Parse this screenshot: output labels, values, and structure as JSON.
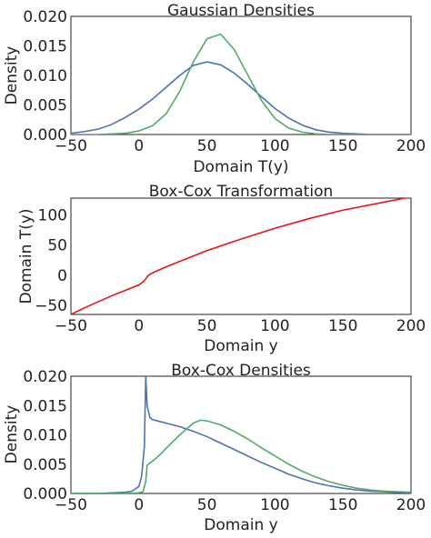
{
  "chart_data": [
    {
      "type": "line",
      "title": "Gaussian Densities",
      "xlabel": "Domain T(y)",
      "ylabel": "Density",
      "xlim": [
        -50,
        200
      ],
      "ylim": [
        0,
        0.02
      ],
      "xticks": [
        "−50",
        "0",
        "50",
        "100",
        "150",
        "200"
      ],
      "yticks": [
        "0.000",
        "0.005",
        "0.010",
        "0.015",
        "0.020"
      ],
      "grid": false,
      "series": [
        {
          "color": "#4c72b0",
          "x": [
            -50,
            -40,
            -30,
            -20,
            -10,
            0,
            10,
            20,
            30,
            40,
            50,
            60,
            70,
            80,
            90,
            100,
            110,
            120,
            130,
            140,
            150,
            160,
            170,
            180,
            190,
            200
          ],
          "y": [
            0.0002,
            0.0005,
            0.0009,
            0.0017,
            0.0029,
            0.0043,
            0.006,
            0.008,
            0.01,
            0.0117,
            0.0123,
            0.0118,
            0.0104,
            0.0085,
            0.0064,
            0.0044,
            0.0028,
            0.0016,
            0.0008,
            0.0004,
            0.0002,
            0.0001,
            0.0,
            0.0,
            0.0,
            0.0
          ]
        },
        {
          "color": "#55a868",
          "x": [
            -50,
            -40,
            -30,
            -20,
            -10,
            0,
            10,
            20,
            30,
            40,
            50,
            60,
            70,
            80,
            90,
            100,
            110,
            120,
            130,
            140,
            150,
            160,
            170,
            180,
            190,
            200
          ],
          "y": [
            0.0,
            0.0,
            0.0,
            0.0001,
            0.0002,
            0.0006,
            0.0015,
            0.0035,
            0.0073,
            0.0123,
            0.0162,
            0.017,
            0.0144,
            0.0101,
            0.0058,
            0.0027,
            0.0011,
            0.0004,
            0.0001,
            0.0,
            0.0,
            0.0,
            0.0,
            0.0,
            0.0,
            0.0
          ]
        }
      ]
    },
    {
      "type": "line",
      "title": "Box-Cox Transformation",
      "xlabel": "Domain y",
      "ylabel": "Domain T(y)",
      "xlim": [
        -50,
        200
      ],
      "ylim": [
        -65,
        128
      ],
      "xticks": [
        "−50",
        "0",
        "50",
        "100",
        "150",
        "200"
      ],
      "yticks": [
        "−50",
        "0",
        "50",
        "100"
      ],
      "grid": false,
      "series": [
        {
          "color": "#e8141a",
          "x": [
            -50,
            -40,
            -30,
            -20,
            -10,
            0,
            3,
            5,
            7,
            10,
            20,
            30,
            50,
            75,
            100,
            125,
            150,
            175,
            200
          ],
          "y": [
            -65,
            -54,
            -44,
            -34,
            -25,
            -16,
            -11,
            -6,
            0,
            4,
            14,
            23,
            41,
            60,
            78,
            94,
            108,
            119,
            130
          ]
        }
      ]
    },
    {
      "type": "line",
      "title": "Box-Cox Densities",
      "xlabel": "Domain y",
      "ylabel": "Density",
      "xlim": [
        -50,
        200
      ],
      "ylim": [
        0,
        0.02
      ],
      "xticks": [
        "−50",
        "0",
        "50",
        "100",
        "150",
        "200"
      ],
      "yticks": [
        "0.000",
        "0.005",
        "0.010",
        "0.015",
        "0.020"
      ],
      "grid": false,
      "series": [
        {
          "color": "#4c72b0",
          "x": [
            -50,
            -30,
            -20,
            -10,
            -5,
            0,
            2,
            4,
            5,
            6,
            8,
            10,
            15,
            20,
            30,
            40,
            50,
            60,
            70,
            80,
            90,
            100,
            110,
            120,
            130,
            140,
            150,
            160,
            170,
            180,
            190,
            200
          ],
          "y": [
            0.0,
            0.0,
            0.0001,
            0.0002,
            0.0004,
            0.0012,
            0.003,
            0.008,
            0.02,
            0.015,
            0.013,
            0.0126,
            0.0123,
            0.012,
            0.0114,
            0.0106,
            0.0097,
            0.0086,
            0.0075,
            0.0064,
            0.0053,
            0.0043,
            0.0033,
            0.0025,
            0.0018,
            0.0013,
            0.0009,
            0.0006,
            0.0004,
            0.0003,
            0.0002,
            0.0001
          ]
        },
        {
          "color": "#55a868",
          "x": [
            -50,
            -20,
            -10,
            0,
            3,
            5,
            6,
            8,
            10,
            15,
            20,
            30,
            40,
            45,
            50,
            60,
            70,
            80,
            90,
            100,
            110,
            120,
            130,
            140,
            150,
            160,
            170,
            180,
            190,
            200
          ],
          "y": [
            0.0,
            0.0,
            0.0,
            0.0001,
            0.0003,
            0.002,
            0.0048,
            0.0052,
            0.0055,
            0.0065,
            0.0077,
            0.01,
            0.012,
            0.0125,
            0.0124,
            0.0117,
            0.0106,
            0.0093,
            0.0078,
            0.0064,
            0.005,
            0.0038,
            0.0028,
            0.002,
            0.0014,
            0.0009,
            0.0006,
            0.0004,
            0.0003,
            0.0002
          ]
        }
      ]
    }
  ]
}
